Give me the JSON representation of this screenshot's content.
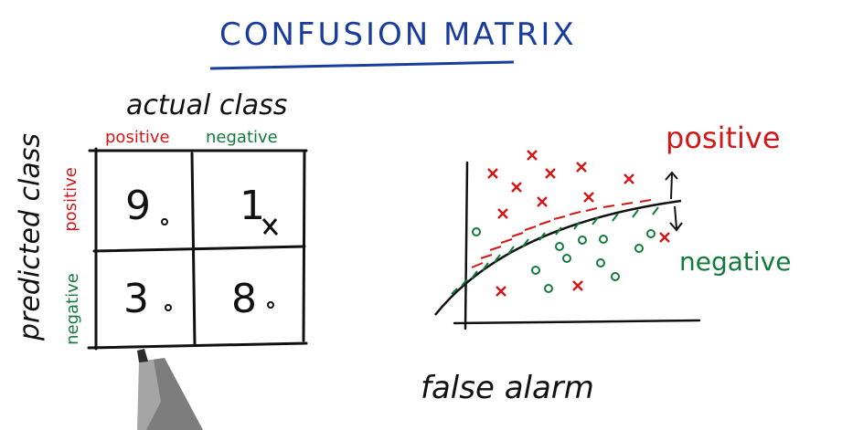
{
  "title": "CONFUSION MATRIX",
  "matrix": {
    "column_header": "actual class",
    "row_header": "predicted class",
    "columns": [
      "positive",
      "negative"
    ],
    "rows": [
      "positive",
      "negative"
    ],
    "cells": {
      "true_positive": "9",
      "false_positive": "1",
      "false_negative": "3",
      "true_negative": "8"
    }
  },
  "plot": {
    "positive_label": "positive",
    "negative_label": "negative"
  },
  "bottom_note": "false alarm",
  "colors": {
    "title": "#1a3c9c",
    "positive": "#d01818",
    "negative": "#127a3a",
    "ink": "#111111"
  }
}
